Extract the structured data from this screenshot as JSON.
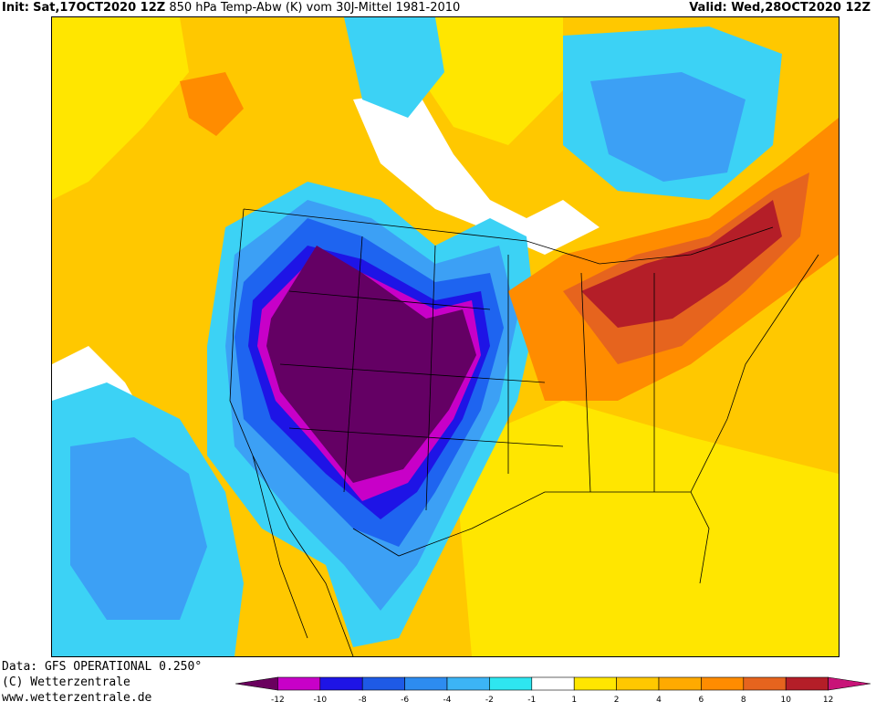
{
  "header": {
    "init_label": "Init:",
    "init_value": "Sat,17OCT2020 12Z",
    "title": "850 hPa Temp-Abw (K) vom 30J-Mittel 1981-2010",
    "valid_label": "Valid:",
    "valid_value": "Wed,28OCT2020 12Z"
  },
  "credits": {
    "line1": "Data: GFS OPERATIONAL 0.250°",
    "line2": "(C) Wetterzentrale",
    "line3": "www.wetterzentrale.de"
  },
  "legend": {
    "ticks": [
      "-12",
      "-10",
      "-8",
      "-6",
      "-4",
      "-2",
      "-1",
      "1",
      "2",
      "4",
      "6",
      "8",
      "10",
      "12"
    ],
    "colors": [
      "#6a005e",
      "#c800c8",
      "#1e14e6",
      "#1e5ae6",
      "#2d8cf0",
      "#3cb4f5",
      "#2ee6f0",
      "#ffffff",
      "#ffe600",
      "#ffc800",
      "#ffaa00",
      "#ff8c00",
      "#e6641e",
      "#b41e28",
      "#c81478"
    ]
  },
  "map": {
    "region": "North America",
    "colors": {
      "deep_cold": "#640064",
      "cold_magenta": "#c800c8",
      "dark_blue": "#1e14e6",
      "blue": "#1e64f0",
      "light_blue": "#3ca0f5",
      "cyan": "#3cd2f5",
      "neutral": "#ffffff",
      "yellow": "#ffe600",
      "gold": "#ffc800",
      "orange_light": "#ffaa00",
      "orange": "#ff8c00",
      "dark_orange": "#e6641e",
      "red": "#b41e28"
    }
  }
}
